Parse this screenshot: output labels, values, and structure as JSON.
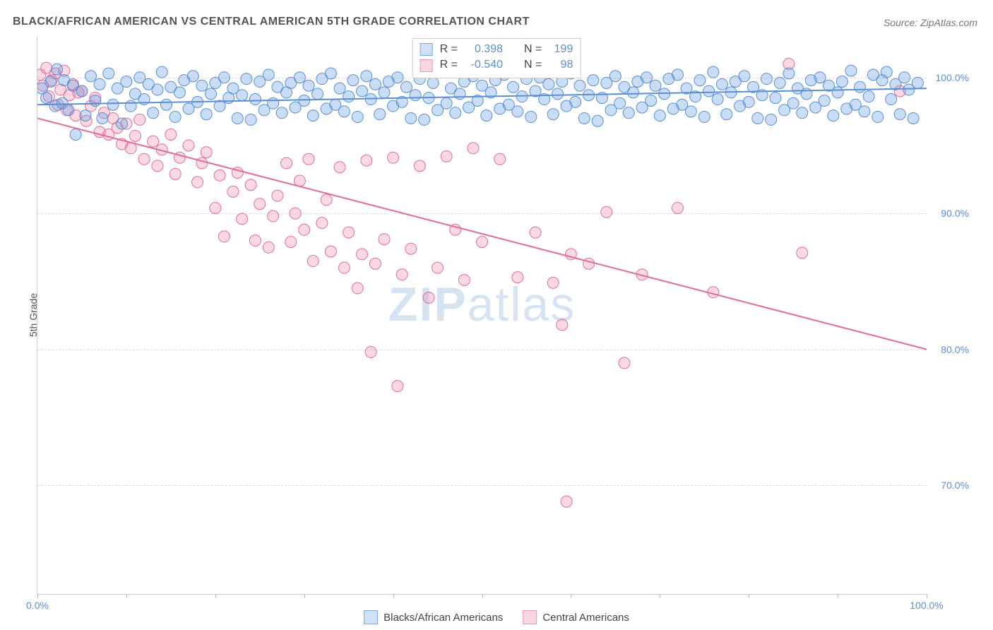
{
  "title": "BLACK/AFRICAN AMERICAN VS CENTRAL AMERICAN 5TH GRADE CORRELATION CHART",
  "source": "Source: ZipAtlas.com",
  "ylabel": "5th Grade",
  "watermark_bold": "ZIP",
  "watermark_light": "atlas",
  "chart": {
    "type": "scatter",
    "background_color": "#ffffff",
    "grid_color": "#dddddd",
    "axis_color": "#cccccc",
    "label_color": "#5a8fd6",
    "xlim": [
      0,
      100
    ],
    "ylim": [
      62,
      103
    ],
    "xtick_step": 10,
    "xtick_labels": [
      {
        "v": 0,
        "label": "0.0%"
      },
      {
        "v": 100,
        "label": "100.0%"
      }
    ],
    "ytick_labels": [
      {
        "v": 100,
        "label": "100.0%"
      },
      {
        "v": 90,
        "label": "90.0%"
      },
      {
        "v": 80,
        "label": "80.0%"
      },
      {
        "v": 70,
        "label": "70.0%"
      }
    ],
    "series": [
      {
        "id": "blacks",
        "name": "Blacks/African Americans",
        "color_fill": "rgba(100,160,230,0.35)",
        "color_stroke": "#5a8fd6",
        "swatch_fill": "#cfe1f7",
        "swatch_border": "#7aa9e0",
        "marker_radius": 8,
        "R": "0.398",
        "N": "199",
        "trend": {
          "x1": 0,
          "y1": 98.0,
          "x2": 100,
          "y2": 99.2,
          "width": 2
        }
      },
      {
        "id": "central",
        "name": "Central Americans",
        "color_fill": "rgba(240,130,160,0.30)",
        "color_stroke": "#e06f93",
        "swatch_fill": "#f9d7e1",
        "swatch_border": "#e59bb3",
        "marker_radius": 8,
        "R": "-0.540",
        "N": "98",
        "trend": {
          "x1": 0,
          "y1": 97.0,
          "x2": 100,
          "y2": 80.0,
          "width": 2
        }
      }
    ]
  },
  "legend_stats": {
    "r_prefix": "R =",
    "n_prefix": "N ="
  },
  "blue_points": [
    [
      0.5,
      99.2
    ],
    [
      1,
      98.5
    ],
    [
      1.5,
      99.7
    ],
    [
      2,
      97.9
    ],
    [
      2.2,
      100.6
    ],
    [
      2.8,
      98.1
    ],
    [
      3,
      99.8
    ],
    [
      3.5,
      97.6
    ],
    [
      4,
      99.4
    ],
    [
      4.3,
      95.8
    ],
    [
      5,
      99.0
    ],
    [
      5.4,
      97.2
    ],
    [
      6,
      100.1
    ],
    [
      6.5,
      98.3
    ],
    [
      7,
      99.5
    ],
    [
      7.3,
      97.0
    ],
    [
      8,
      100.3
    ],
    [
      8.5,
      98.0
    ],
    [
      9,
      99.2
    ],
    [
      9.5,
      96.6
    ],
    [
      10,
      99.7
    ],
    [
      10.5,
      97.9
    ],
    [
      11,
      98.8
    ],
    [
      11.5,
      100.0
    ],
    [
      12,
      98.4
    ],
    [
      12.5,
      99.5
    ],
    [
      13,
      97.4
    ],
    [
      13.5,
      99.1
    ],
    [
      14,
      100.4
    ],
    [
      14.5,
      98.0
    ],
    [
      15,
      99.3
    ],
    [
      15.5,
      97.1
    ],
    [
      16,
      98.9
    ],
    [
      16.5,
      99.8
    ],
    [
      17,
      97.7
    ],
    [
      17.5,
      100.1
    ],
    [
      18,
      98.2
    ],
    [
      18.5,
      99.4
    ],
    [
      19,
      97.3
    ],
    [
      19.5,
      98.8
    ],
    [
      20,
      99.6
    ],
    [
      20.5,
      97.9
    ],
    [
      21,
      100.0
    ],
    [
      21.5,
      98.5
    ],
    [
      22,
      99.2
    ],
    [
      22.5,
      97.0
    ],
    [
      23,
      98.7
    ],
    [
      23.5,
      99.9
    ],
    [
      24,
      96.9
    ],
    [
      24.5,
      98.4
    ],
    [
      25,
      99.7
    ],
    [
      25.5,
      97.6
    ],
    [
      26,
      100.2
    ],
    [
      26.5,
      98.1
    ],
    [
      27,
      99.3
    ],
    [
      27.5,
      97.4
    ],
    [
      28,
      98.9
    ],
    [
      28.5,
      99.6
    ],
    [
      29,
      97.8
    ],
    [
      29.5,
      100.0
    ],
    [
      30,
      98.3
    ],
    [
      30.5,
      99.4
    ],
    [
      31,
      97.2
    ],
    [
      31.5,
      98.8
    ],
    [
      32,
      99.9
    ],
    [
      32.5,
      97.7
    ],
    [
      33,
      100.3
    ],
    [
      33.5,
      98.0
    ],
    [
      34,
      99.2
    ],
    [
      34.5,
      97.5
    ],
    [
      35,
      98.6
    ],
    [
      35.5,
      99.8
    ],
    [
      36,
      97.1
    ],
    [
      36.5,
      99.0
    ],
    [
      37,
      100.1
    ],
    [
      37.5,
      98.4
    ],
    [
      38,
      99.5
    ],
    [
      38.5,
      97.3
    ],
    [
      39,
      98.9
    ],
    [
      39.5,
      99.7
    ],
    [
      40,
      97.9
    ],
    [
      40.5,
      100.0
    ],
    [
      41,
      98.2
    ],
    [
      41.5,
      99.3
    ],
    [
      42,
      97.0
    ],
    [
      42.5,
      98.7
    ],
    [
      43,
      99.9
    ],
    [
      43.5,
      96.9
    ],
    [
      44,
      98.5
    ],
    [
      44.5,
      99.6
    ],
    [
      45,
      97.6
    ],
    [
      45.5,
      100.4
    ],
    [
      46,
      98.1
    ],
    [
      46.5,
      99.2
    ],
    [
      47,
      97.4
    ],
    [
      47.5,
      98.8
    ],
    [
      48,
      99.7
    ],
    [
      48.5,
      97.8
    ],
    [
      49,
      100.1
    ],
    [
      49.5,
      98.3
    ],
    [
      50,
      99.4
    ],
    [
      50.5,
      97.2
    ],
    [
      51,
      98.9
    ],
    [
      51.5,
      99.8
    ],
    [
      52,
      97.7
    ],
    [
      52.5,
      100.2
    ],
    [
      53,
      98.0
    ],
    [
      53.5,
      99.3
    ],
    [
      54,
      97.5
    ],
    [
      54.5,
      98.6
    ],
    [
      55,
      99.9
    ],
    [
      55.5,
      97.1
    ],
    [
      56,
      99.0
    ],
    [
      56.5,
      100.0
    ],
    [
      57,
      98.4
    ],
    [
      57.5,
      99.5
    ],
    [
      58,
      97.3
    ],
    [
      58.5,
      98.8
    ],
    [
      59,
      99.7
    ],
    [
      59.5,
      97.9
    ],
    [
      60,
      100.3
    ],
    [
      60.5,
      98.2
    ],
    [
      61,
      99.4
    ],
    [
      61.5,
      97.0
    ],
    [
      62,
      98.7
    ],
    [
      62.5,
      99.8
    ],
    [
      63,
      96.8
    ],
    [
      63.5,
      98.5
    ],
    [
      64,
      99.6
    ],
    [
      64.5,
      97.6
    ],
    [
      65,
      100.1
    ],
    [
      65.5,
      98.1
    ],
    [
      66,
      99.3
    ],
    [
      66.5,
      97.4
    ],
    [
      67,
      98.9
    ],
    [
      67.5,
      99.7
    ],
    [
      68,
      97.8
    ],
    [
      68.5,
      100.0
    ],
    [
      69,
      98.3
    ],
    [
      69.5,
      99.4
    ],
    [
      70,
      97.2
    ],
    [
      70.5,
      98.8
    ],
    [
      71,
      99.9
    ],
    [
      71.5,
      97.7
    ],
    [
      72,
      100.2
    ],
    [
      72.5,
      98.0
    ],
    [
      73,
      99.2
    ],
    [
      73.5,
      97.5
    ],
    [
      74,
      98.6
    ],
    [
      74.5,
      99.8
    ],
    [
      75,
      97.1
    ],
    [
      75.5,
      99.0
    ],
    [
      76,
      100.4
    ],
    [
      76.5,
      98.4
    ],
    [
      77,
      99.5
    ],
    [
      77.5,
      97.3
    ],
    [
      78,
      98.9
    ],
    [
      78.5,
      99.7
    ],
    [
      79,
      97.9
    ],
    [
      79.5,
      100.1
    ],
    [
      80,
      98.2
    ],
    [
      80.5,
      99.3
    ],
    [
      81,
      97.0
    ],
    [
      81.5,
      98.7
    ],
    [
      82,
      99.9
    ],
    [
      82.5,
      96.9
    ],
    [
      83,
      98.5
    ],
    [
      83.5,
      99.6
    ],
    [
      84,
      97.6
    ],
    [
      84.5,
      100.3
    ],
    [
      85,
      98.1
    ],
    [
      85.5,
      99.2
    ],
    [
      86,
      97.4
    ],
    [
      86.5,
      98.8
    ],
    [
      87,
      99.8
    ],
    [
      87.5,
      97.8
    ],
    [
      88,
      100.0
    ],
    [
      88.5,
      98.3
    ],
    [
      89,
      99.4
    ],
    [
      89.5,
      97.2
    ],
    [
      90,
      98.9
    ],
    [
      90.5,
      99.7
    ],
    [
      91,
      97.7
    ],
    [
      91.5,
      100.5
    ],
    [
      92,
      98.0
    ],
    [
      92.5,
      99.3
    ],
    [
      93,
      97.5
    ],
    [
      93.5,
      98.6
    ],
    [
      94,
      100.2
    ],
    [
      94.5,
      97.1
    ],
    [
      95,
      99.8
    ],
    [
      95.5,
      100.4
    ],
    [
      96,
      98.4
    ],
    [
      96.5,
      99.5
    ],
    [
      97,
      97.3
    ],
    [
      97.5,
      100.0
    ],
    [
      98,
      99.1
    ],
    [
      98.5,
      97.0
    ],
    [
      99,
      99.6
    ]
  ],
  "pink_points": [
    [
      0.3,
      100.2
    ],
    [
      0.6,
      99.4
    ],
    [
      1,
      100.7
    ],
    [
      1.3,
      98.6
    ],
    [
      1.6,
      99.8
    ],
    [
      2,
      100.3
    ],
    [
      2.3,
      98.0
    ],
    [
      2.6,
      99.1
    ],
    [
      3,
      100.5
    ],
    [
      3.3,
      97.6
    ],
    [
      3.6,
      98.7
    ],
    [
      4,
      99.5
    ],
    [
      4.3,
      97.2
    ],
    [
      4.6,
      98.9
    ],
    [
      5,
      99.0
    ],
    [
      5.5,
      96.8
    ],
    [
      6,
      97.9
    ],
    [
      6.5,
      98.5
    ],
    [
      7,
      96.0
    ],
    [
      7.5,
      97.4
    ],
    [
      8,
      95.8
    ],
    [
      8.5,
      97.0
    ],
    [
      9,
      96.3
    ],
    [
      9.5,
      95.1
    ],
    [
      10,
      96.6
    ],
    [
      10.5,
      94.8
    ],
    [
      11,
      95.7
    ],
    [
      11.5,
      96.9
    ],
    [
      12,
      94.0
    ],
    [
      13,
      95.3
    ],
    [
      13.5,
      93.5
    ],
    [
      14,
      94.7
    ],
    [
      15,
      95.8
    ],
    [
      15.5,
      92.9
    ],
    [
      16,
      94.1
    ],
    [
      17,
      95.0
    ],
    [
      18,
      92.3
    ],
    [
      18.5,
      93.7
    ],
    [
      19,
      94.5
    ],
    [
      20,
      90.4
    ],
    [
      20.5,
      92.8
    ],
    [
      21,
      88.3
    ],
    [
      22,
      91.6
    ],
    [
      22.5,
      93.0
    ],
    [
      23,
      89.6
    ],
    [
      24,
      92.1
    ],
    [
      24.5,
      88.0
    ],
    [
      25,
      90.7
    ],
    [
      26,
      87.5
    ],
    [
      26.5,
      89.8
    ],
    [
      27,
      91.3
    ],
    [
      28,
      93.7
    ],
    [
      28.5,
      87.9
    ],
    [
      29,
      90.0
    ],
    [
      29.5,
      92.4
    ],
    [
      30,
      88.8
    ],
    [
      30.5,
      94.0
    ],
    [
      31,
      86.5
    ],
    [
      32,
      89.3
    ],
    [
      32.5,
      91.0
    ],
    [
      33,
      87.2
    ],
    [
      34,
      93.4
    ],
    [
      34.5,
      86.0
    ],
    [
      35,
      88.6
    ],
    [
      36,
      84.5
    ],
    [
      36.5,
      87.0
    ],
    [
      37,
      93.9
    ],
    [
      37.5,
      79.8
    ],
    [
      38,
      86.3
    ],
    [
      39,
      88.1
    ],
    [
      40,
      94.1
    ],
    [
      40.5,
      77.3
    ],
    [
      41,
      85.5
    ],
    [
      42,
      87.4
    ],
    [
      43,
      93.5
    ],
    [
      44,
      83.8
    ],
    [
      45,
      86.0
    ],
    [
      46,
      94.2
    ],
    [
      47,
      88.8
    ],
    [
      48,
      85.1
    ],
    [
      49,
      94.8
    ],
    [
      50,
      87.9
    ],
    [
      52,
      94.0
    ],
    [
      54,
      85.3
    ],
    [
      56,
      88.6
    ],
    [
      58,
      84.9
    ],
    [
      59,
      81.8
    ],
    [
      59.5,
      68.8
    ],
    [
      60,
      87.0
    ],
    [
      62,
      86.3
    ],
    [
      64,
      90.1
    ],
    [
      66,
      79.0
    ],
    [
      68,
      85.5
    ],
    [
      72,
      90.4
    ],
    [
      76,
      84.2
    ],
    [
      84.5,
      101.0
    ],
    [
      86,
      87.1
    ],
    [
      97,
      99.0
    ]
  ]
}
